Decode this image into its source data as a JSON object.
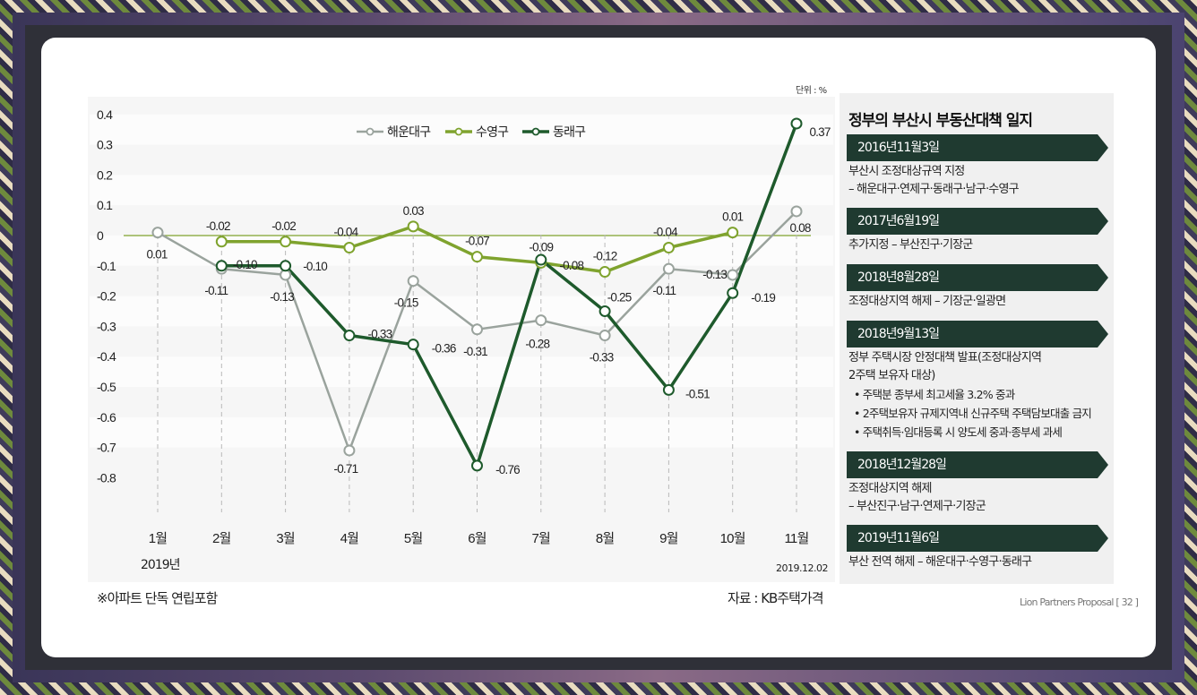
{
  "unit_label": "단위 : %",
  "year_label": "2019년",
  "date_label": "2019.12.02",
  "footnote": "※아파트 단독 연립포함",
  "source": "자료 : KB주택가격",
  "page_footer": "Lion Partners Proposal [ 32 ]",
  "colors": {
    "haeundae": "#9aa39d",
    "suyeong": "#7fa32e",
    "dongnae": "#1e5a2c"
  },
  "chart_data": {
    "type": "line",
    "categories": [
      "1월",
      "2월",
      "3월",
      "4월",
      "5월",
      "6월",
      "7월",
      "8월",
      "9월",
      "10월",
      "11월"
    ],
    "ylim": [
      -0.8,
      0.4
    ],
    "yticks": [
      "0.4",
      "0.3",
      "0.2",
      "0.1",
      "0",
      "-0.1",
      "-0.2",
      "-0.3",
      "-0.4",
      "-0.5",
      "-0.6",
      "-0.7",
      "-0.8"
    ],
    "ytick_values": [
      0.4,
      0.3,
      0.2,
      0.1,
      0,
      -0.1,
      -0.2,
      -0.3,
      -0.4,
      -0.5,
      -0.6,
      -0.7,
      -0.8
    ],
    "legend_position": "top",
    "series": [
      {
        "name": "해운대구",
        "color_key": "haeundae",
        "values": [
          0.01,
          -0.11,
          -0.13,
          -0.71,
          -0.15,
          -0.31,
          -0.28,
          -0.33,
          -0.11,
          -0.13,
          0.08
        ],
        "labels": [
          "0.01",
          "-0.11",
          "-0.13",
          "-0.71",
          "-0.15",
          "-0.31",
          "-0.28",
          "-0.33",
          "-0.11",
          "-0.13",
          "0.08"
        ]
      },
      {
        "name": "수영구",
        "color_key": "suyeong",
        "values": [
          null,
          -0.02,
          -0.02,
          -0.04,
          0.03,
          -0.07,
          -0.09,
          -0.12,
          -0.04,
          0.01,
          null
        ],
        "labels": [
          "",
          "-0.02",
          "-0.02",
          "-0.04",
          "0.03",
          "-0.07",
          "-0.09",
          "-0.12",
          "-0.04",
          "0.01",
          ""
        ]
      },
      {
        "name": "동래구",
        "color_key": "dongnae",
        "values": [
          null,
          -0.1,
          -0.1,
          -0.33,
          -0.36,
          -0.76,
          -0.08,
          -0.25,
          -0.51,
          -0.19,
          0.37
        ],
        "labels": [
          "",
          "-0.10",
          "-0.10",
          "-0.33",
          "-0.36",
          "-0.76",
          "-0.08",
          "-0.25",
          "-0.51",
          "-0.19",
          "0.37"
        ]
      }
    ]
  },
  "timeline": {
    "title": "정부의 부산시 부동산대책 일지",
    "events": [
      {
        "date": "2016년11월3일",
        "lines": [
          "부산시 조정대상규역 지정",
          "– 해운대구·연제구·동래구·남구·수영구"
        ],
        "bullets": []
      },
      {
        "date": "2017년6월19일",
        "lines": [
          "추가지정 – 부산진구·기장군"
        ],
        "bullets": []
      },
      {
        "date": "2018년8월28일",
        "lines": [
          "조정대상지역 해제 – 기장군·일광면"
        ],
        "bullets": []
      },
      {
        "date": "2018년9월13일",
        "lines": [
          "정부 주택시장 안정대책 발표(조정대상지역",
          "2주택 보유자 대상)"
        ],
        "bullets": [
          "• 주택분 종부세 최고세율 3.2% 중과",
          "• 2주택보유자 규제지역내 신규주택 주택담보대출 금지",
          "• 주택취득·임대등록 시 양도세 중과·종부세 과세"
        ]
      },
      {
        "date": "2018년12월28일",
        "lines": [
          "조정대상지역 해제",
          "– 부산진구·남구·연제구·기장군"
        ],
        "bullets": []
      },
      {
        "date": "2019년11월6일",
        "lines": [
          "부산 전역 해제 – 해운대구·수영구·동래구"
        ],
        "bullets": []
      }
    ]
  }
}
